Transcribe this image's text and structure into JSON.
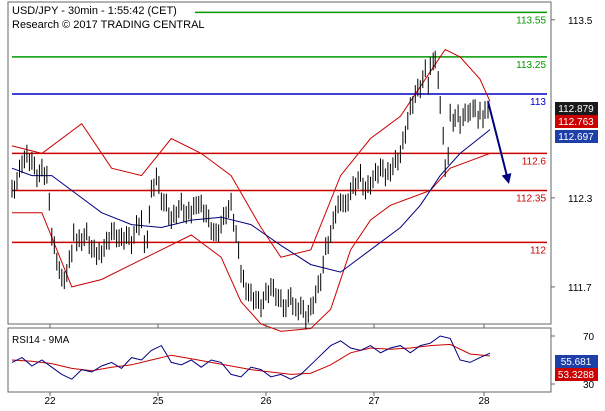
{
  "header": {
    "line1": "USD/JPY - 30min - 1:55:42 (CET)",
    "line2": "Research © 2017 TRADING CENTRAL"
  },
  "rsi_title": "RSI14 - 9MA",
  "colors": {
    "price": "#000000",
    "bollinger": "#cc0000",
    "moving_average": "#00007f",
    "resistance_green": "#009900",
    "pivot_blue": "#0000cc",
    "support_red": "#cc0000",
    "arrow": "#00007f",
    "rsi_line": "#000080",
    "rsi_ma": "#cc0000",
    "frame": "#666666"
  },
  "chart_data": [
    {
      "type": "line",
      "title": "USD/JPY 30min",
      "ylim": [
        111.45,
        113.62
      ],
      "y_ticks": [
        "113.5",
        "112.3",
        "111.7"
      ],
      "x_ticks": [
        "22",
        "25",
        "26",
        "27",
        "28"
      ],
      "levels": [
        {
          "value": 113.55,
          "label": "113.55",
          "color": "green"
        },
        {
          "value": 113.25,
          "label": "113.25",
          "color": "green"
        },
        {
          "value": 113.0,
          "label": "113",
          "color": "blue"
        },
        {
          "value": 112.6,
          "label": "112.6",
          "color": "red"
        },
        {
          "value": 112.35,
          "label": "112.35",
          "color": "red"
        },
        {
          "value": 112.0,
          "label": "112",
          "color": "red"
        }
      ],
      "price_tags": [
        {
          "label": "112.879",
          "value": 112.879,
          "style": "dark"
        },
        {
          "label": "112.763",
          "value": 112.763,
          "style": "red"
        },
        {
          "label": "112.697",
          "value": 112.697,
          "style": "blue"
        }
      ],
      "series": [
        {
          "name": "price",
          "x": [
            0,
            5,
            10,
            15,
            20,
            25,
            30,
            35,
            40,
            45,
            50,
            55,
            60,
            62,
            65,
            70,
            75,
            80,
            85,
            90,
            95,
            100,
            105,
            110,
            115,
            120,
            125,
            130,
            133,
            136,
            140,
            145,
            150,
            155,
            160,
            165,
            170,
            175,
            180,
            185,
            190,
            195,
            200,
            205,
            210,
            215,
            220,
            225,
            230,
            235,
            240,
            245,
            250,
            255,
            260,
            265,
            270,
            275,
            280,
            282,
            285,
            290,
            295,
            300,
            305,
            310,
            315,
            320,
            325,
            330,
            335,
            340,
            345,
            350,
            355,
            360,
            365,
            370,
            375,
            380,
            385,
            390,
            395,
            400,
            405,
            410,
            415,
            418,
            420,
            423,
            425,
            428,
            430,
            433,
            435,
            438,
            440,
            443,
            445,
            448,
            450,
            453,
            455,
            458,
            460,
            463,
            465,
            468,
            470,
            473,
            475,
            478,
            480
          ],
          "y": [
            112.35,
            112.42,
            112.55,
            112.58,
            112.55,
            112.45,
            112.48,
            112.45,
            112.05,
            111.9,
            111.75,
            111.8,
            111.95,
            112.05,
            112.0,
            112.02,
            112.05,
            111.95,
            111.92,
            111.95,
            112.0,
            112.08,
            112.05,
            112.02,
            112.05,
            112.0,
            112.1,
            112.15,
            112.0,
            112.05,
            112.35,
            112.45,
            112.3,
            112.25,
            112.15,
            112.2,
            112.25,
            112.18,
            112.2,
            112.28,
            112.25,
            112.2,
            112.1,
            112.05,
            112.12,
            112.2,
            112.25,
            112.05,
            111.8,
            111.7,
            111.65,
            111.62,
            111.58,
            111.65,
            111.7,
            111.65,
            111.6,
            111.55,
            111.65,
            111.6,
            111.55,
            111.58,
            111.5,
            111.55,
            111.65,
            111.75,
            111.95,
            112.05,
            112.2,
            112.3,
            112.25,
            112.35,
            112.4,
            112.45,
            112.35,
            112.4,
            112.45,
            112.5,
            112.45,
            112.5,
            112.55,
            112.6,
            112.75,
            112.9,
            113.0,
            113.05,
            113.15,
            113.05,
            113.2,
            113.25,
            113.22,
            113.1,
            112.95,
            112.7,
            112.5,
            112.6,
            112.85,
            112.8,
            112.85,
            112.9,
            112.78,
            112.85,
            112.9,
            112.85,
            112.88,
            112.92,
            112.88,
            112.82,
            112.9,
            112.86,
            112.88,
            112.9,
            112.879
          ]
        },
        {
          "name": "bollinger-upper",
          "x": [
            0,
            30,
            70,
            100,
            130,
            160,
            190,
            220,
            250,
            270,
            300,
            330,
            360,
            390,
            420,
            435,
            450,
            470,
            480
          ],
          "y": [
            112.65,
            112.6,
            112.8,
            112.5,
            112.45,
            112.7,
            112.6,
            112.45,
            112.1,
            111.9,
            111.95,
            112.45,
            112.7,
            112.85,
            113.15,
            113.3,
            113.25,
            113.1,
            112.95
          ]
        },
        {
          "name": "bollinger-lower",
          "x": [
            0,
            30,
            60,
            90,
            120,
            150,
            180,
            210,
            230,
            250,
            270,
            300,
            320,
            340,
            360,
            380,
            400,
            420,
            440,
            460,
            480
          ],
          "y": [
            112.2,
            112.2,
            111.7,
            111.75,
            111.85,
            111.95,
            112.05,
            111.9,
            111.6,
            111.45,
            111.4,
            111.42,
            111.55,
            111.95,
            112.15,
            112.25,
            112.3,
            112.35,
            112.5,
            112.55,
            112.6
          ]
        },
        {
          "name": "moving-average",
          "x": [
            0,
            20,
            40,
            60,
            90,
            120,
            150,
            180,
            210,
            240,
            270,
            300,
            330,
            360,
            390,
            410,
            430,
            450,
            465,
            480
          ],
          "y": [
            112.5,
            112.45,
            112.45,
            112.35,
            112.2,
            112.12,
            112.1,
            112.15,
            112.17,
            112.12,
            111.98,
            111.85,
            111.8,
            111.95,
            112.1,
            112.25,
            112.45,
            112.6,
            112.68,
            112.76
          ]
        }
      ],
      "forecast_arrow": {
        "x_from": 488,
        "y_from": 112.95,
        "x_to": 508,
        "y_to": 112.42
      }
    },
    {
      "type": "line",
      "title": "RSI14 - 9MA",
      "ylim": [
        25,
        75
      ],
      "y_ticks": [
        "70",
        "30"
      ],
      "price_tags": [
        {
          "label": "55.681",
          "value": 55.681,
          "style": "blue"
        },
        {
          "label": "53.3288",
          "value": 53.3288,
          "style": "red"
        }
      ],
      "series": [
        {
          "name": "rsi",
          "x": [
            0,
            10,
            20,
            30,
            40,
            50,
            60,
            70,
            80,
            90,
            100,
            110,
            120,
            130,
            140,
            150,
            160,
            170,
            180,
            190,
            200,
            210,
            220,
            230,
            240,
            250,
            260,
            270,
            280,
            290,
            300,
            310,
            320,
            330,
            340,
            350,
            360,
            370,
            380,
            390,
            400,
            410,
            420,
            430,
            440,
            450,
            460,
            470,
            480
          ],
          "y": [
            48,
            52,
            45,
            50,
            44,
            38,
            34,
            42,
            40,
            45,
            48,
            43,
            52,
            50,
            58,
            62,
            48,
            46,
            50,
            44,
            50,
            48,
            38,
            36,
            44,
            42,
            36,
            38,
            34,
            38,
            46,
            54,
            62,
            66,
            60,
            58,
            62,
            56,
            60,
            62,
            56,
            62,
            64,
            70,
            68,
            50,
            48,
            52,
            55.681
          ]
        },
        {
          "name": "rsi-ma",
          "x": [
            0,
            20,
            40,
            60,
            80,
            100,
            120,
            140,
            160,
            180,
            200,
            220,
            240,
            260,
            280,
            300,
            320,
            340,
            360,
            380,
            400,
            420,
            440,
            460,
            480
          ],
          "y": [
            50,
            49,
            47,
            43,
            41,
            44,
            46,
            50,
            54,
            51,
            48,
            45,
            42,
            40,
            38,
            39,
            46,
            56,
            60,
            59,
            60,
            62,
            63,
            55,
            53.3288
          ]
        }
      ]
    }
  ]
}
